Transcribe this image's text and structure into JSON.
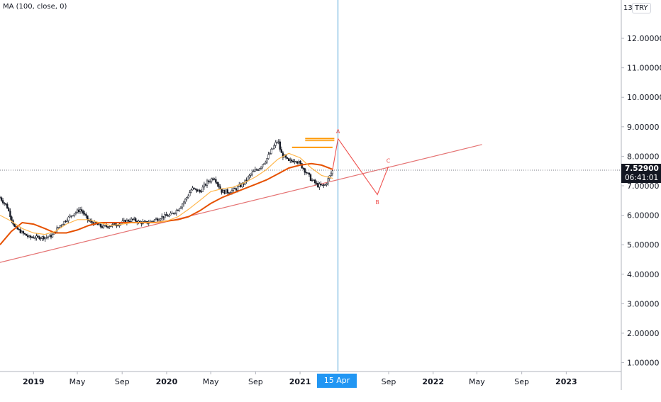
{
  "indicator_label": "MA (100, close, 0)",
  "currency": "TRY",
  "currency_prefix": "13",
  "current_price": "7.52900",
  "countdown": "06:41:01",
  "crosshair_date": "15 Apr '21",
  "colors": {
    "candle": "#131722",
    "ma_main": "#e65100",
    "ma_secondary": "#ffb74d",
    "trendline": "#e57373",
    "crosshair": "#4fa3d9",
    "projection": "#ef5350",
    "resistance": "#ff9800"
  },
  "chart_data": {
    "type": "line",
    "title": "",
    "xlabel": "",
    "ylabel": "",
    "y_scale": "linear",
    "ylim": [
      0.7,
      13.3
    ],
    "xlim": [
      "2018-10-01",
      "2023-06-01"
    ],
    "grid": false,
    "y_tick_labels": [
      "1.00000",
      "2.00000",
      "3.00000",
      "4.00000",
      "5.00000",
      "6.00000",
      "7.00000",
      "8.00000",
      "9.00000",
      "10.00000",
      "11.00000",
      "12.00000"
    ],
    "x_tick_labels": [
      {
        "label": "2019",
        "date": "2019-01-01"
      },
      {
        "label": "May",
        "date": "2019-05-01"
      },
      {
        "label": "Sep",
        "date": "2019-09-01"
      },
      {
        "label": "2020",
        "date": "2020-01-01"
      },
      {
        "label": "May",
        "date": "2020-05-01"
      },
      {
        "label": "Sep",
        "date": "2020-09-01"
      },
      {
        "label": "2021",
        "date": "2021-01-01"
      },
      {
        "label": "Sep",
        "date": "2021-09-01"
      },
      {
        "label": "2022",
        "date": "2022-01-01"
      },
      {
        "label": "May",
        "date": "2022-05-01"
      },
      {
        "label": "Sep",
        "date": "2022-09-01"
      },
      {
        "label": "2023",
        "date": "2023-01-01"
      }
    ],
    "price_series": {
      "x": [
        "2018-10-01",
        "2018-10-20",
        "2018-11-10",
        "2018-12-01",
        "2018-12-20",
        "2019-01-10",
        "2019-02-01",
        "2019-02-20",
        "2019-03-10",
        "2019-04-01",
        "2019-04-20",
        "2019-05-10",
        "2019-06-01",
        "2019-06-20",
        "2019-07-10",
        "2019-08-01",
        "2019-08-20",
        "2019-09-10",
        "2019-10-01",
        "2019-10-20",
        "2019-11-10",
        "2019-12-01",
        "2019-12-20",
        "2020-01-10",
        "2020-02-01",
        "2020-02-20",
        "2020-03-10",
        "2020-04-01",
        "2020-04-20",
        "2020-05-10",
        "2020-06-01",
        "2020-06-20",
        "2020-07-10",
        "2020-08-01",
        "2020-08-20",
        "2020-09-10",
        "2020-10-01",
        "2020-10-20",
        "2020-11-01",
        "2020-11-10",
        "2020-12-01",
        "2020-12-20",
        "2021-01-10",
        "2021-02-01",
        "2021-02-20",
        "2021-03-10",
        "2021-04-01"
      ],
      "values": [
        6.6,
        6.3,
        5.6,
        5.4,
        5.25,
        5.25,
        5.25,
        5.3,
        5.6,
        5.85,
        6.05,
        6.2,
        5.8,
        5.7,
        5.6,
        5.65,
        5.7,
        5.8,
        5.85,
        5.75,
        5.75,
        5.85,
        5.95,
        6.0,
        6.2,
        6.5,
        6.9,
        6.8,
        7.1,
        7.3,
        6.8,
        6.8,
        6.9,
        7.1,
        7.4,
        7.6,
        7.9,
        8.3,
        8.55,
        8.1,
        7.8,
        7.9,
        7.6,
        7.2,
        7.0,
        7.0,
        7.53
      ]
    },
    "ma_series": [
      {
        "name": "",
        "x": [
          "2018-10-01",
          "2018-11-01",
          "2018-12-01",
          "2019-01-01",
          "2019-02-01",
          "2019-03-01",
          "2019-04-01",
          "2019-05-01",
          "2019-06-01",
          "2019-07-01",
          "2019-08-01",
          "2019-09-01",
          "2019-10-01",
          "2019-11-01",
          "2019-12-01",
          "2020-01-01",
          "2020-02-01",
          "2020-03-01",
          "2020-04-01",
          "2020-05-01",
          "2020-06-01",
          "2020-07-01",
          "2020-08-01",
          "2020-09-01",
          "2020-10-01",
          "2020-11-01",
          "2020-12-01",
          "2021-01-01",
          "2021-02-01",
          "2021-03-01",
          "2021-04-01"
        ],
        "values": [
          5.0,
          5.45,
          5.75,
          5.7,
          5.55,
          5.4,
          5.4,
          5.5,
          5.65,
          5.75,
          5.75,
          5.75,
          5.75,
          5.75,
          5.75,
          5.8,
          5.85,
          5.95,
          6.15,
          6.4,
          6.6,
          6.75,
          6.9,
          7.05,
          7.2,
          7.4,
          7.6,
          7.7,
          7.75,
          7.7,
          7.55
        ]
      },
      {
        "name": "",
        "x": [
          "2018-10-01",
          "2018-11-01",
          "2018-12-01",
          "2019-01-01",
          "2019-02-01",
          "2019-03-01",
          "2019-04-01",
          "2019-05-01",
          "2019-06-01",
          "2019-07-01",
          "2019-08-01",
          "2019-09-01",
          "2019-10-01",
          "2019-11-01",
          "2019-12-01",
          "2020-01-01",
          "2020-02-01",
          "2020-03-01",
          "2020-04-01",
          "2020-05-01",
          "2020-06-01",
          "2020-07-01",
          "2020-08-01",
          "2020-09-01",
          "2020-10-01",
          "2020-11-01",
          "2020-12-01",
          "2021-01-01",
          "2021-02-01",
          "2021-03-01",
          "2021-04-01"
        ],
        "values": [
          6.0,
          5.8,
          5.55,
          5.4,
          5.35,
          5.45,
          5.7,
          5.85,
          5.85,
          5.75,
          5.65,
          5.7,
          5.75,
          5.75,
          5.75,
          5.8,
          5.95,
          6.2,
          6.5,
          6.8,
          6.9,
          6.95,
          7.1,
          7.3,
          7.55,
          7.9,
          8.1,
          7.95,
          7.6,
          7.35,
          7.25
        ]
      }
    ],
    "trendline": {
      "x": [
        "2018-10-01",
        "2022-05-15"
      ],
      "y": [
        4.4,
        8.4
      ]
    },
    "crosshair": {
      "date": "2021-04-15"
    },
    "current_price_line": 7.529,
    "resistance_lines": [
      {
        "x": [
          "2020-12-10",
          "2021-03-31"
        ],
        "y": 8.3
      },
      {
        "x": [
          "2021-01-15",
          "2021-04-05"
        ],
        "y": 8.6
      }
    ],
    "projection_path": {
      "x": [
        "2021-03-31",
        "2021-04-15",
        "2021-08-01",
        "2021-08-31"
      ],
      "y": [
        7.53,
        8.6,
        6.7,
        7.65
      ],
      "labels": [
        {
          "text": "A",
          "x": "2021-04-15",
          "y": 8.85
        },
        {
          "text": "B",
          "x": "2021-08-01",
          "y": 6.45
        },
        {
          "text": "C",
          "x": "2021-08-31",
          "y": 7.85
        }
      ]
    }
  }
}
